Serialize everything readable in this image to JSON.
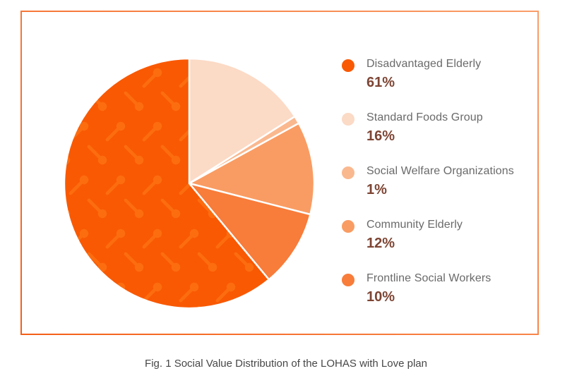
{
  "card": {
    "border_color_start": "#f45f17",
    "border_color_end": "#fa9d69"
  },
  "chart_data": {
    "type": "pie",
    "title": "Fig. 1 Social Value Distribution of the LOHAS with Love plan",
    "legend_position": "right",
    "start_angle_deg": 0,
    "clockwise": true,
    "draw_order": [
      1,
      2,
      3,
      4,
      0
    ],
    "separator_color": "#ffffff",
    "slices": [
      {
        "label": "Disadvantaged Elderly",
        "value": 61,
        "display": "61%",
        "color": "#f95903",
        "pattern": "spoon"
      },
      {
        "label": "Standard Foods Group",
        "value": 16,
        "display": "16%",
        "color": "#fbdac6"
      },
      {
        "label": "Social Welfare Organizations",
        "value": 1,
        "display": "1%",
        "color": "#fab88f"
      },
      {
        "label": "Community Elderly",
        "value": 12,
        "display": "12%",
        "color": "#f99c63"
      },
      {
        "label": "Frontline Social Workers",
        "value": 10,
        "display": "10%",
        "color": "#f87c3a"
      }
    ],
    "pattern": {
      "motif": "spoon-icon",
      "applies_to": "Disadvantaged Elderly",
      "color": "#fc6d10"
    }
  },
  "legend": {
    "label_color": "#6a6a6a",
    "value_color": "#7d4534"
  },
  "caption": {
    "text": "Fig. 1 Social Value Distribution of the LOHAS with Love plan"
  }
}
